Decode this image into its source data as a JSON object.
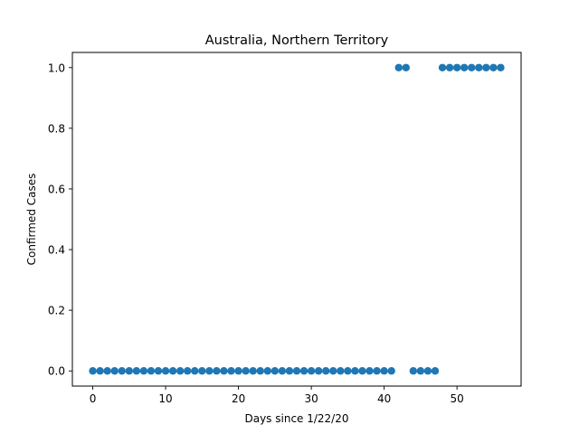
{
  "chart_data": {
    "type": "scatter",
    "title": "Australia, Northern Territory",
    "xlabel": "Days since 1/22/20",
    "ylabel": "Confirmed Cases",
    "xlim": [
      -2.8,
      58.8
    ],
    "ylim": [
      -0.05,
      1.05
    ],
    "xticks": [
      0,
      10,
      20,
      30,
      40,
      50
    ],
    "yticks": [
      0.0,
      0.2,
      0.4,
      0.6,
      0.8,
      1.0
    ],
    "xtick_labels": [
      "0",
      "10",
      "20",
      "30",
      "40",
      "50"
    ],
    "ytick_labels": [
      "0.0",
      "0.2",
      "0.4",
      "0.6",
      "0.8",
      "1.0"
    ],
    "grid": false,
    "legend": "none",
    "marker_color": "#1f77b4",
    "x": [
      0,
      1,
      2,
      3,
      4,
      5,
      6,
      7,
      8,
      9,
      10,
      11,
      12,
      13,
      14,
      15,
      16,
      17,
      18,
      19,
      20,
      21,
      22,
      23,
      24,
      25,
      26,
      27,
      28,
      29,
      30,
      31,
      32,
      33,
      34,
      35,
      36,
      37,
      38,
      39,
      40,
      41,
      42,
      43,
      44,
      45,
      46,
      47,
      48,
      49,
      50,
      51,
      52,
      53,
      54,
      55,
      56
    ],
    "y": [
      0,
      0,
      0,
      0,
      0,
      0,
      0,
      0,
      0,
      0,
      0,
      0,
      0,
      0,
      0,
      0,
      0,
      0,
      0,
      0,
      0,
      0,
      0,
      0,
      0,
      0,
      0,
      0,
      0,
      0,
      0,
      0,
      0,
      0,
      0,
      0,
      0,
      0,
      0,
      0,
      0,
      0,
      1,
      1,
      0,
      0,
      0,
      0,
      1,
      1,
      1,
      1,
      1,
      1,
      1,
      1,
      1
    ]
  }
}
